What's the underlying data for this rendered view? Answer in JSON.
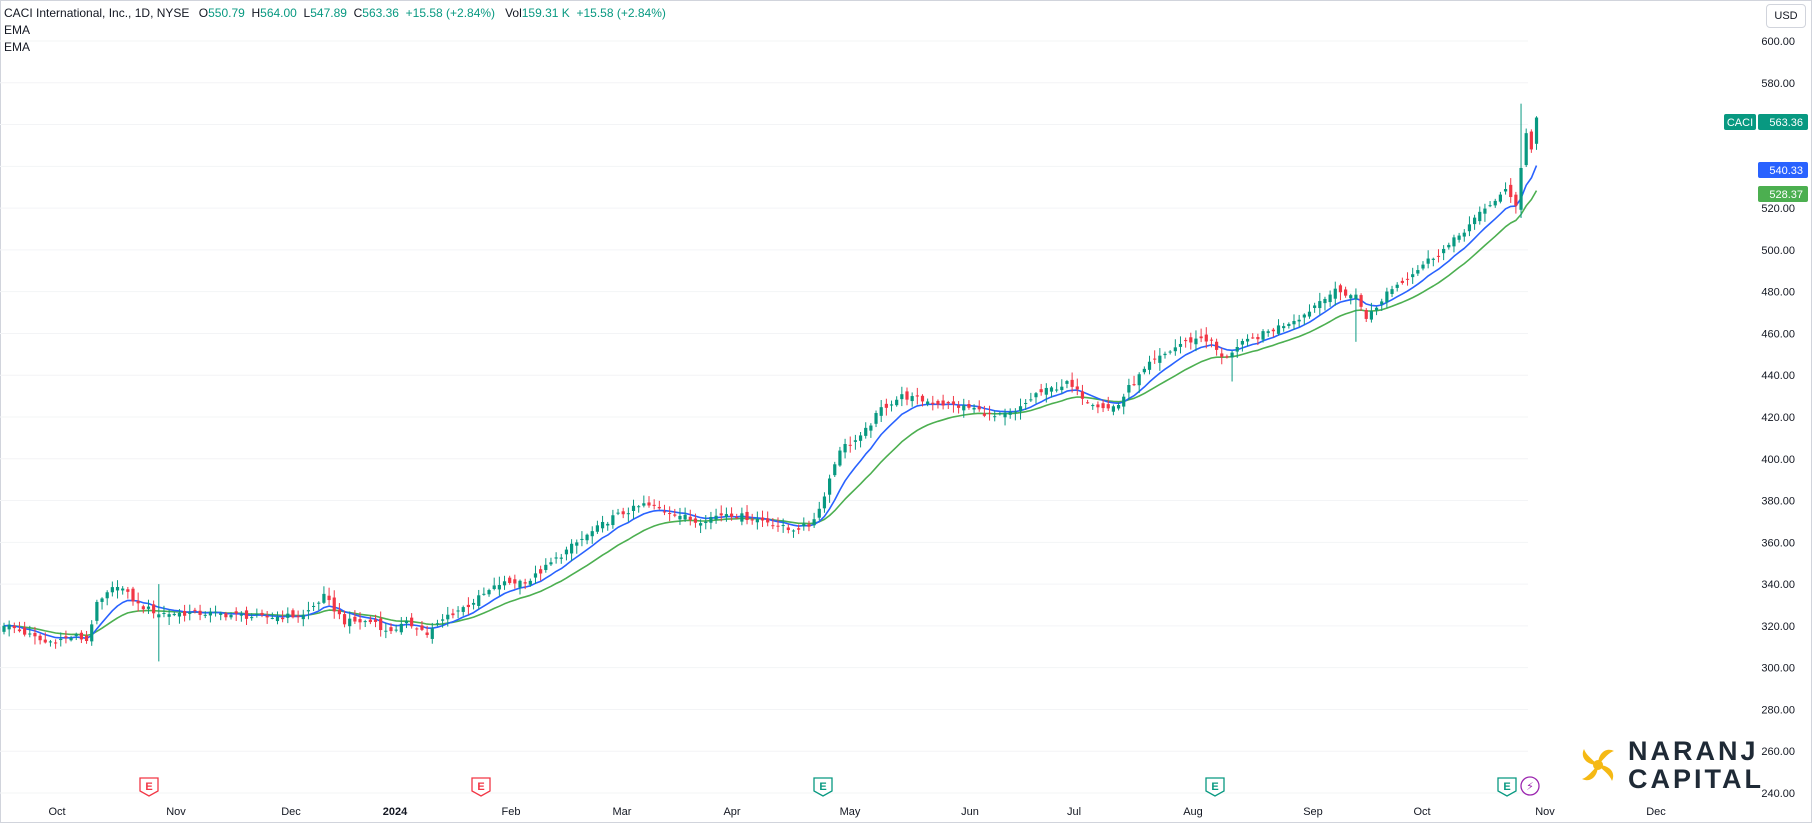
{
  "legend": {
    "symbol": "CACI International, Inc., 1D, NYSE",
    "o_label": "O",
    "o_value": "550.79",
    "h_label": "H",
    "h_value": "564.00",
    "l_label": "L",
    "l_value": "547.89",
    "c_label": "C",
    "c_value": "563.36",
    "change": "+15.58 (+2.84%)",
    "vol_label": "Vol",
    "vol_value": "159.31 K",
    "vol_change": "+15.58 (+2.84%)",
    "ema1": "EMA",
    "ema2": "EMA"
  },
  "currency": "USD",
  "brand": {
    "line1": "NARANJ",
    "line2": "CAPITAL"
  },
  "colors": {
    "up": "#089981",
    "down": "#f23645",
    "ema_fast": "#2962ff",
    "ema_slow": "#4caf50",
    "earnings_past": "#f23645",
    "earnings_future": "#089981",
    "dividend": "#9c27b0"
  },
  "chart_data": {
    "type": "candlestick",
    "symbol": "CACI",
    "ylim": [
      232,
      612
    ],
    "y_ticks": [
      "240.00",
      "260.00",
      "280.00",
      "300.00",
      "320.00",
      "340.00",
      "360.00",
      "380.00",
      "400.00",
      "420.00",
      "440.00",
      "460.00",
      "480.00",
      "500.00",
      "520.00",
      "540.00",
      "560.00",
      "580.00",
      "600.00"
    ],
    "x_ticks": [
      "Oct",
      "Nov",
      "Dec",
      "2024",
      "Feb",
      "Mar",
      "Apr",
      "May",
      "Jun",
      "Jul",
      "Aug",
      "Sep",
      "Oct",
      "Nov",
      "Dec"
    ],
    "price_labels": [
      {
        "name": "CACI",
        "value": "563.36",
        "color": "#089981"
      },
      {
        "name": "",
        "value": "540.33",
        "color": "#2962ff"
      },
      {
        "name": "",
        "value": "528.37",
        "color": "#4caf50"
      }
    ],
    "event_markers": [
      {
        "type": "earnings",
        "label": "E",
        "x_tick": "Oct-2023 late",
        "status": "past"
      },
      {
        "type": "earnings",
        "label": "E",
        "x_tick": "Jan-2024 late",
        "status": "past"
      },
      {
        "type": "earnings",
        "label": "E",
        "x_tick": "Apr-2024 late",
        "status": "reported"
      },
      {
        "type": "earnings",
        "label": "E",
        "x_tick": "Jul-2024 late",
        "status": "reported"
      },
      {
        "type": "earnings",
        "label": "E",
        "x_tick": "Oct-2024 late",
        "status": "reported"
      },
      {
        "type": "dividend",
        "label": "⚡",
        "x_tick": "Oct-2024 late",
        "status": "upcoming"
      }
    ],
    "anchors": [
      [
        0,
        321
      ],
      [
        8,
        312
      ],
      [
        14,
        315
      ],
      [
        16,
        313
      ],
      [
        18,
        330
      ],
      [
        22,
        340
      ],
      [
        26,
        330
      ],
      [
        30,
        326
      ],
      [
        40,
        326
      ],
      [
        50,
        324
      ],
      [
        58,
        325
      ],
      [
        62,
        334
      ],
      [
        66,
        322
      ],
      [
        72,
        322
      ],
      [
        74,
        317
      ],
      [
        78,
        321
      ],
      [
        80,
        320
      ],
      [
        82,
        316
      ],
      [
        86,
        325
      ],
      [
        90,
        330
      ],
      [
        96,
        340
      ],
      [
        102,
        342
      ],
      [
        110,
        358
      ],
      [
        118,
        372
      ],
      [
        124,
        378
      ],
      [
        130,
        374
      ],
      [
        134,
        370
      ],
      [
        140,
        374
      ],
      [
        148,
        370
      ],
      [
        152,
        366
      ],
      [
        156,
        368
      ],
      [
        158,
        376
      ],
      [
        162,
        405
      ],
      [
        166,
        410
      ],
      [
        170,
        424
      ],
      [
        174,
        430
      ],
      [
        180,
        427
      ],
      [
        188,
        424
      ],
      [
        192,
        420
      ],
      [
        196,
        422
      ],
      [
        200,
        431
      ],
      [
        206,
        436
      ],
      [
        210,
        428
      ],
      [
        214,
        424
      ],
      [
        216,
        426
      ],
      [
        218,
        434
      ],
      [
        222,
        445
      ],
      [
        228,
        455
      ],
      [
        232,
        458
      ],
      [
        234,
        456
      ],
      [
        236,
        448
      ],
      [
        240,
        455
      ],
      [
        246,
        462
      ],
      [
        252,
        469
      ],
      [
        256,
        478
      ],
      [
        258,
        480
      ],
      [
        262,
        478
      ],
      [
        264,
        468
      ],
      [
        266,
        472
      ],
      [
        268,
        480
      ],
      [
        272,
        487
      ],
      [
        276,
        495
      ],
      [
        280,
        502
      ],
      [
        284,
        512
      ],
      [
        288,
        522
      ],
      [
        291,
        528
      ],
      [
        293,
        522
      ],
      [
        294,
        540
      ],
      [
        295,
        556
      ],
      [
        296,
        548
      ],
      [
        297,
        563.36
      ]
    ],
    "ema_fast_last": 540.33,
    "ema_slow_last": 528.37
  }
}
